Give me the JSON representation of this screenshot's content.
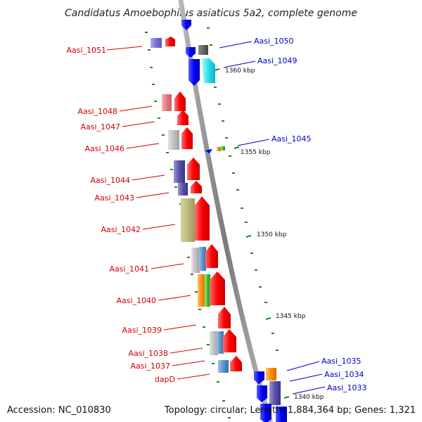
{
  "title": "Candidatus Amoebophilus asiaticus 5a2, complete genome",
  "footer": {
    "accession": "Accession: NC_010830",
    "summary": "Topology: circular; Length: 1,884,364 bp; Genes: 1,321"
  },
  "scale_ticks": [
    "1360 kbp",
    "1355 kbp",
    "1350 kbp",
    "1345 kbp",
    "1340 kbp"
  ],
  "left_labels": [
    "Aasi_1051",
    "Aasi_1048",
    "Aasi_1047",
    "Aasi_1046",
    "Aasi_1044",
    "Aasi_1043",
    "Aasi_1042",
    "Aasi_1041",
    "Aasi_1040",
    "Aasi_1039",
    "Aasi_1038",
    "Aasi_1037",
    "dapD"
  ],
  "right_labels": [
    "Aasi_1050",
    "Aasi_1049",
    "Aasi_1045",
    "Aasi_1035",
    "Aasi_1034",
    "Aasi_1033"
  ],
  "colors": {
    "label_left": "#d00000",
    "label_right": "#0000c8",
    "backbone": "#808080",
    "forward_arrow": "#ff0000",
    "reverse_arrow": "#0000ff",
    "tick_mark": "#1a8a1a"
  }
}
